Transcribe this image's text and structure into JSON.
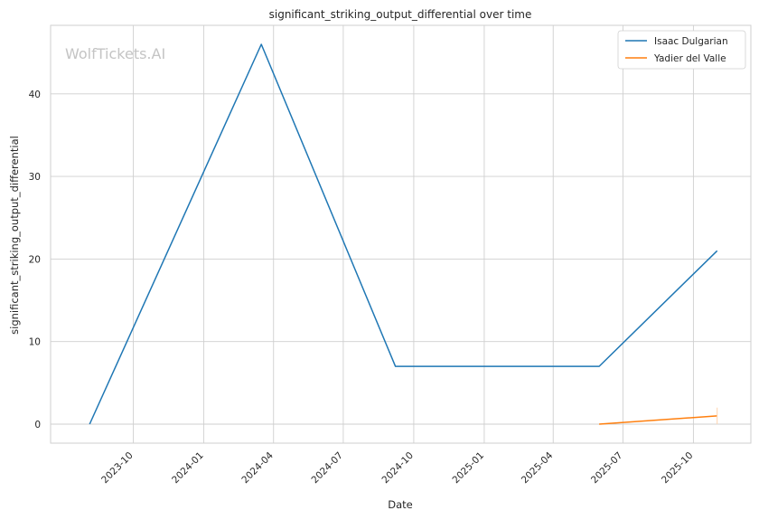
{
  "chart_data": {
    "type": "line",
    "title": "significant_striking_output_differential over time",
    "xlabel": "Date",
    "ylabel": "significant_striking_output_differential",
    "watermark": "WolfTickets.AI",
    "grid": true,
    "legend_position": "top-right",
    "x_ticks": [
      "2023-10",
      "2024-01",
      "2024-04",
      "2024-07",
      "2024-10",
      "2025-01",
      "2025-04",
      "2025-07",
      "2025-10"
    ],
    "y_ticks": [
      0,
      10,
      20,
      30,
      40
    ],
    "ylim": [
      -2.3,
      48.3
    ],
    "xlim": [
      "2023-06-15",
      "2025-12-15"
    ],
    "series": [
      {
        "name": "Isaac Dulgarian",
        "color": "#1f77b4",
        "x": [
          "2023-08-05",
          "2024-03-16",
          "2024-09-07",
          "2025-05-31",
          "2025-11-01"
        ],
        "y": [
          0,
          46,
          7,
          7,
          21
        ]
      },
      {
        "name": "Yadier del Valle",
        "color": "#ff7f0e",
        "x": [
          "2025-05-31",
          "2025-11-01"
        ],
        "y": [
          0,
          1
        ]
      }
    ]
  }
}
